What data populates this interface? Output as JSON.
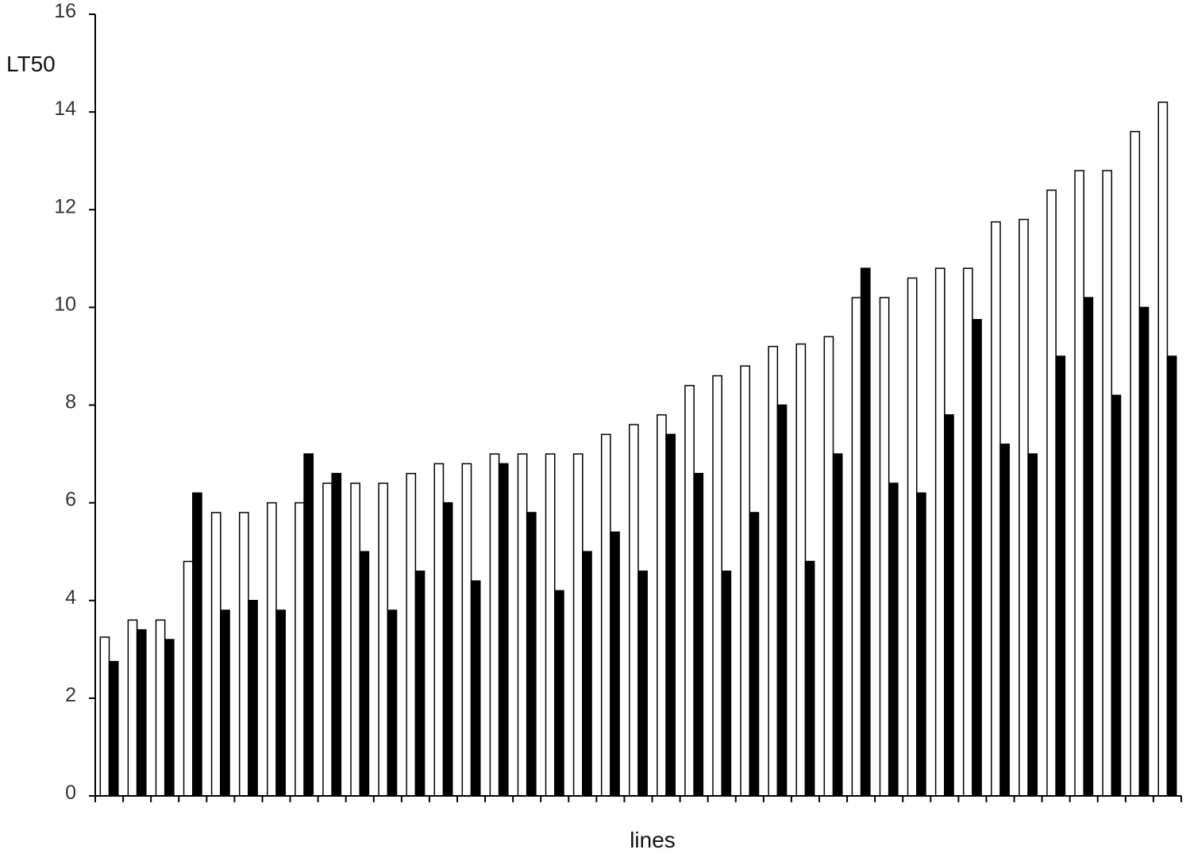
{
  "chart_data": {
    "type": "bar",
    "title": "",
    "xlabel": "lines",
    "ylabel": "LT50",
    "ylim": [
      0,
      16
    ],
    "yticks": [
      0,
      2,
      4,
      6,
      8,
      10,
      12,
      14,
      16
    ],
    "grid": false,
    "legend": "none",
    "categories": [
      "",
      "",
      "",
      "",
      "",
      "",
      "",
      "",
      "",
      "",
      "",
      "",
      "",
      "",
      "",
      "",
      "",
      "",
      "",
      "",
      "",
      "",
      "",
      "",
      "",
      "",
      "",
      "",
      "",
      "",
      "",
      "",
      "",
      "",
      "",
      "",
      "",
      "",
      ""
    ],
    "series": [
      {
        "color": "#ffffff",
        "values": [
          3.25,
          3.6,
          3.6,
          4.8,
          5.8,
          5.8,
          6.0,
          6.0,
          6.4,
          6.4,
          6.4,
          6.6,
          6.8,
          6.8,
          7.0,
          7.0,
          7.0,
          7.0,
          7.4,
          7.6,
          7.8,
          8.4,
          8.6,
          8.8,
          9.2,
          9.25,
          9.4,
          10.2,
          10.2,
          10.6,
          10.8,
          10.8,
          11.75,
          11.8,
          12.4,
          12.8,
          12.8,
          13.6,
          14.2
        ]
      },
      {
        "color": "#000000",
        "values": [
          2.75,
          3.4,
          3.2,
          6.2,
          3.8,
          4.0,
          3.8,
          7.0,
          6.6,
          5.0,
          3.8,
          4.6,
          6.0,
          4.4,
          6.8,
          5.8,
          4.2,
          5.0,
          5.4,
          4.6,
          7.4,
          6.6,
          4.6,
          5.8,
          8.0,
          4.8,
          7.0,
          10.8,
          6.4,
          6.2,
          7.8,
          9.75,
          7.2,
          7.0,
          9.0,
          10.2,
          8.2,
          10.0,
          9.0
        ]
      }
    ]
  }
}
